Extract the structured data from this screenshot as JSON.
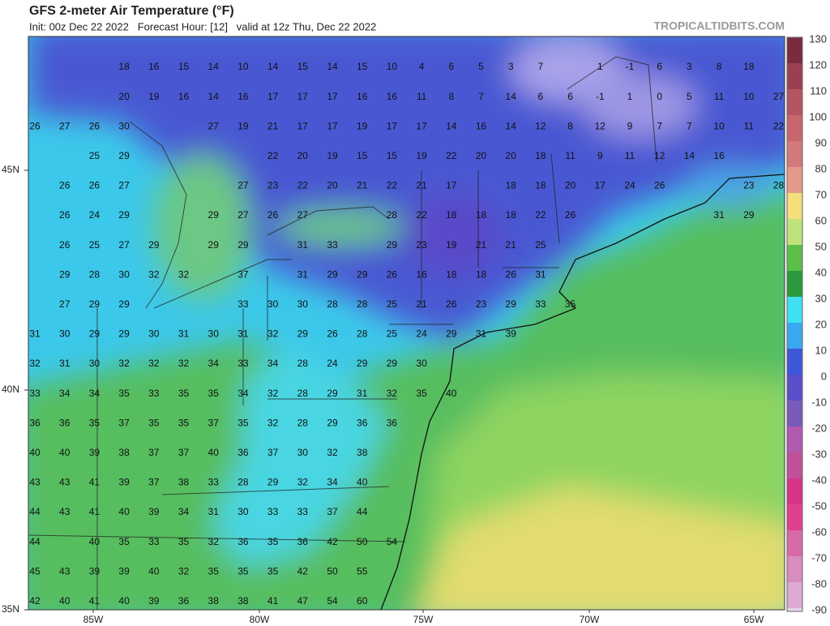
{
  "header": {
    "title": "GFS 2-meter Air Temperature (°F)",
    "subtitle": "Init: 00z Dec 22 2022   Forecast Hour: [12]   valid at 12z Thu, Dec 22 2022",
    "watermark": "TROPICALTIDBITS.COM"
  },
  "map": {
    "lat_labels": [
      "45N",
      "40N",
      "35N"
    ],
    "lon_labels": [
      "85W",
      "80W",
      "75W",
      "70W",
      "65W"
    ],
    "station_values": [
      [
        null,
        null,
        null,
        18,
        16,
        15,
        14,
        10,
        14,
        15,
        14,
        15,
        10,
        4,
        6,
        5,
        3,
        7,
        null,
        1,
        -1,
        6,
        3,
        8,
        18,
        null
      ],
      [
        null,
        null,
        null,
        20,
        19,
        16,
        14,
        16,
        17,
        17,
        17,
        16,
        16,
        11,
        8,
        7,
        14,
        6,
        6,
        -1,
        1,
        0,
        5,
        11,
        10,
        27
      ],
      [
        26,
        27,
        26,
        30,
        null,
        null,
        27,
        19,
        21,
        17,
        17,
        19,
        17,
        17,
        14,
        16,
        14,
        12,
        8,
        12,
        9,
        7,
        7,
        10,
        11,
        22
      ],
      [
        null,
        null,
        25,
        29,
        null,
        null,
        null,
        null,
        22,
        20,
        19,
        15,
        15,
        19,
        22,
        20,
        20,
        18,
        11,
        9,
        11,
        12,
        14,
        16,
        null,
        null
      ],
      [
        null,
        26,
        26,
        27,
        null,
        null,
        null,
        27,
        23,
        22,
        20,
        21,
        22,
        21,
        17,
        null,
        18,
        18,
        20,
        17,
        24,
        26,
        null,
        null,
        23,
        28
      ],
      [
        null,
        26,
        24,
        29,
        null,
        null,
        29,
        27,
        26,
        27,
        null,
        null,
        28,
        22,
        18,
        18,
        18,
        22,
        26,
        null,
        null,
        null,
        null,
        31,
        29,
        null
      ],
      [
        null,
        26,
        25,
        27,
        29,
        null,
        29,
        29,
        null,
        31,
        33,
        null,
        29,
        23,
        19,
        21,
        21,
        25
      ],
      [
        null,
        29,
        28,
        30,
        32,
        32,
        null,
        37,
        null,
        31,
        29,
        29,
        26,
        16,
        18,
        18,
        26,
        31
      ],
      [
        null,
        27,
        29,
        29,
        null,
        null,
        null,
        33,
        30,
        30,
        28,
        28,
        25,
        21,
        26,
        23,
        29,
        33,
        35
      ],
      [
        31,
        30,
        29,
        29,
        30,
        31,
        30,
        31,
        32,
        29,
        26,
        28,
        25,
        24,
        29,
        31,
        39
      ],
      [
        32,
        31,
        30,
        32,
        32,
        32,
        34,
        33,
        34,
        28,
        24,
        29,
        29,
        30
      ],
      [
        33,
        34,
        34,
        35,
        33,
        35,
        35,
        34,
        32,
        28,
        29,
        31,
        32,
        35,
        40
      ],
      [
        36,
        36,
        35,
        37,
        35,
        35,
        37,
        35,
        32,
        28,
        29,
        36,
        36
      ],
      [
        40,
        40,
        39,
        38,
        37,
        37,
        40,
        36,
        37,
        30,
        32,
        38
      ],
      [
        43,
        43,
        41,
        39,
        37,
        38,
        33,
        28,
        29,
        32,
        34,
        40
      ],
      [
        44,
        43,
        41,
        40,
        39,
        34,
        31,
        30,
        33,
        33,
        37,
        44
      ],
      [
        44,
        null,
        40,
        35,
        33,
        35,
        32,
        36,
        35,
        36,
        42,
        50,
        54
      ],
      [
        45,
        43,
        39,
        39,
        40,
        32,
        35,
        35,
        35,
        42,
        50,
        55
      ],
      [
        42,
        40,
        41,
        40,
        39,
        36,
        38,
        38,
        41,
        47,
        54,
        60
      ]
    ]
  },
  "colorbar": {
    "labels": [
      130,
      120,
      110,
      100,
      90,
      80,
      70,
      60,
      50,
      40,
      30,
      20,
      10,
      0,
      -10,
      -20,
      -30,
      -40,
      -50,
      -60,
      -70,
      -80,
      -90
    ],
    "colors": [
      "#7a2c3c",
      "#9c3f50",
      "#b45464",
      "#c8666e",
      "#d4797a",
      "#e49a8a",
      "#f4df7a",
      "#bfe27a",
      "#5cbf4a",
      "#2a9a3c",
      "#3fe0f0",
      "#3aa8f0",
      "#3c58d8",
      "#5a4fc8",
      "#7a5ab8",
      "#b05ab0",
      "#c0509a",
      "#d8348a",
      "#e0408e",
      "#d86aa8",
      "#d88cc0",
      "#dcaad4",
      "#e8d0ec"
    ]
  }
}
